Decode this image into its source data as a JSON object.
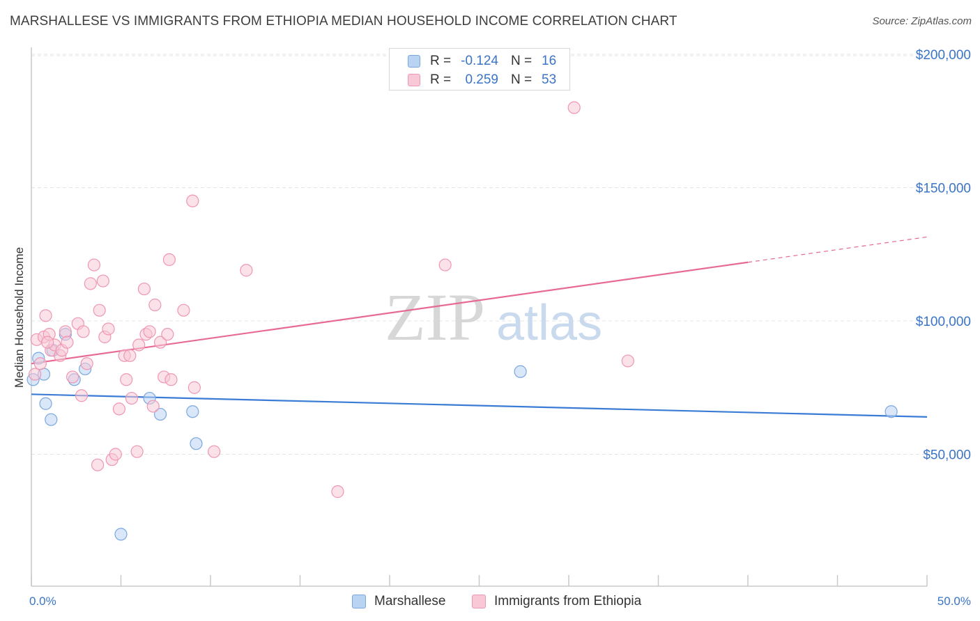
{
  "title": "MARSHALLESE VS IMMIGRANTS FROM ETHIOPIA MEDIAN HOUSEHOLD INCOME CORRELATION CHART",
  "source": "Source: ZipAtlas.com",
  "watermark": {
    "zip": "ZIP",
    "atlas": "atlas"
  },
  "colors": {
    "blue": "#3a7bd5",
    "blue_fill": "#b9d3f3",
    "blue_stroke": "#7aa7e0",
    "pink": "#e76a95",
    "pink_fill": "#f8c8d6",
    "pink_stroke": "#ee96b3",
    "grid": "#e4e4e4",
    "axis": "#c9c9c9",
    "tick_text": "#3a74c6"
  },
  "stats": [
    {
      "label": "R =",
      "r": "-0.124",
      "n_label": "N =",
      "n": "16"
    },
    {
      "label": "R =",
      "r": "0.259",
      "n_label": "N =",
      "n": "53"
    }
  ],
  "legend": [
    {
      "name": "Marshallese"
    },
    {
      "name": "Immigrants from Ethiopia"
    }
  ],
  "chart_data": {
    "type": "scatter",
    "title": "MARSHALLESE VS IMMIGRANTS FROM ETHIOPIA MEDIAN HOUSEHOLD INCOME CORRELATION CHART",
    "xlabel": "",
    "ylabel": "Median Household Income",
    "xlim": [
      0,
      50
    ],
    "ylim": [
      0,
      210000
    ],
    "x_tick_labels": [
      "0.0%",
      "50.0%"
    ],
    "x_tick_positions": [
      0,
      5,
      10,
      15,
      20,
      25,
      30,
      35,
      40,
      45,
      50
    ],
    "y_ticks": [
      50000,
      100000,
      150000,
      200000
    ],
    "y_tick_labels": [
      "$50,000",
      "$100,000",
      "$150,000",
      "$200,000"
    ],
    "grid": true,
    "series": [
      {
        "name": "Marshallese",
        "color": "#3a7bd5",
        "points": [
          [
            0.1,
            78000
          ],
          [
            0.4,
            86000
          ],
          [
            0.7,
            80000
          ],
          [
            0.8,
            69000
          ],
          [
            1.1,
            63000
          ],
          [
            1.2,
            89000
          ],
          [
            1.9,
            95000
          ],
          [
            2.4,
            78000
          ],
          [
            3.0,
            82000
          ],
          [
            5.0,
            20000
          ],
          [
            6.6,
            71000
          ],
          [
            7.2,
            65000
          ],
          [
            9.0,
            66000
          ],
          [
            9.2,
            54000
          ],
          [
            27.3,
            81000
          ],
          [
            48.0,
            66000
          ]
        ],
        "trend": {
          "x0": 0,
          "y0": 72500,
          "x1": 50,
          "y1": 64000
        }
      },
      {
        "name": "Immigrants from Ethiopia",
        "color": "#e76a95",
        "points": [
          [
            0.2,
            80000
          ],
          [
            0.3,
            93000
          ],
          [
            0.5,
            84000
          ],
          [
            0.7,
            94000
          ],
          [
            0.8,
            102000
          ],
          [
            1.0,
            95000
          ],
          [
            1.1,
            89000
          ],
          [
            1.3,
            91000
          ],
          [
            1.6,
            87000
          ],
          [
            1.7,
            89000
          ],
          [
            1.9,
            96000
          ],
          [
            2.0,
            92000
          ],
          [
            2.3,
            79000
          ],
          [
            2.6,
            99000
          ],
          [
            2.8,
            72000
          ],
          [
            2.9,
            96000
          ],
          [
            3.1,
            84000
          ],
          [
            3.3,
            114000
          ],
          [
            3.5,
            121000
          ],
          [
            3.7,
            46000
          ],
          [
            3.8,
            104000
          ],
          [
            4.0,
            115000
          ],
          [
            4.1,
            94000
          ],
          [
            4.3,
            97000
          ],
          [
            4.5,
            48000
          ],
          [
            4.7,
            50000
          ],
          [
            4.9,
            67000
          ],
          [
            5.2,
            87000
          ],
          [
            5.3,
            78000
          ],
          [
            5.5,
            87000
          ],
          [
            5.6,
            71000
          ],
          [
            5.9,
            51000
          ],
          [
            6.0,
            91000
          ],
          [
            6.3,
            112000
          ],
          [
            6.4,
            95000
          ],
          [
            6.6,
            96000
          ],
          [
            6.8,
            68000
          ],
          [
            6.9,
            106000
          ],
          [
            7.2,
            92000
          ],
          [
            7.4,
            79000
          ],
          [
            7.6,
            95000
          ],
          [
            7.7,
            123000
          ],
          [
            7.8,
            78000
          ],
          [
            8.5,
            104000
          ],
          [
            9.0,
            145000
          ],
          [
            9.1,
            75000
          ],
          [
            10.2,
            51000
          ],
          [
            12.0,
            119000
          ],
          [
            17.1,
            36000
          ],
          [
            23.1,
            121000
          ],
          [
            30.3,
            180000
          ],
          [
            33.3,
            85000
          ],
          [
            0.9,
            92000
          ]
        ],
        "trend": {
          "x0": 0,
          "y0": 84000,
          "x1": 40,
          "y1": 122000,
          "x_dash_end": 50,
          "y_dash_end": 131500
        }
      }
    ]
  }
}
